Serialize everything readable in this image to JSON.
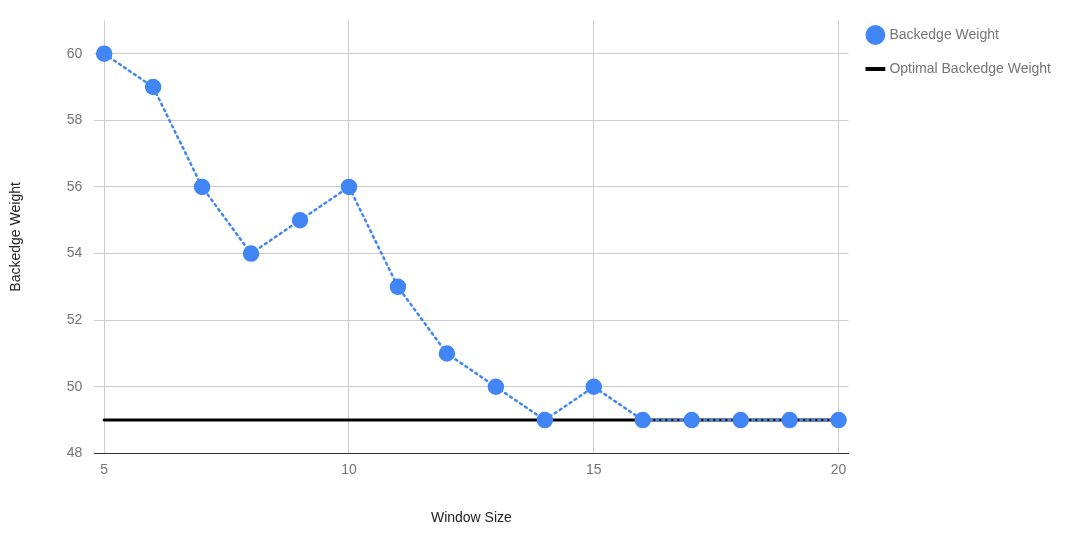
{
  "chart_data": {
    "type": "line",
    "xlabel": "Window Size",
    "ylabel": "Backedge Weight",
    "xlim": [
      4.8,
      20.2
    ],
    "xticks": [
      5,
      10,
      15,
      20
    ],
    "ylim": [
      48,
      61
    ],
    "yticks": [
      48,
      50,
      52,
      54,
      56,
      58,
      60
    ],
    "grid": true,
    "legend": "top right",
    "series": [
      {
        "name": "Backedge Weight",
        "type": "line",
        "color": "#4285f4",
        "marker": "circle",
        "line_style": "dotted",
        "x": [
          5,
          6,
          7,
          8,
          9,
          10,
          11,
          12,
          13,
          14,
          15,
          16,
          17,
          18,
          19,
          20
        ],
        "values": [
          60,
          59,
          56,
          54,
          55,
          56,
          53,
          51,
          50,
          49,
          50,
          49,
          49,
          49,
          49,
          49
        ]
      },
      {
        "name": "Optimal Backedge Weight",
        "type": "line",
        "color": "#000000",
        "marker": "none",
        "line_style": "solid",
        "x": [
          5,
          20
        ],
        "values": [
          49,
          49
        ]
      }
    ]
  }
}
